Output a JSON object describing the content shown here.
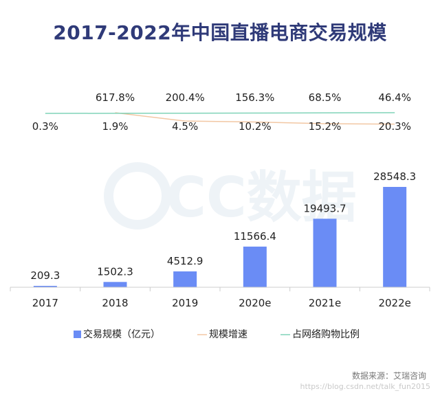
{
  "title": "2017-2022年中国直播电商交易规模",
  "source": "数据来源：艾瑞咨询",
  "watermark": {
    "brand": "CC数据",
    "url": "https://blog.csdn.net/talk_fun2015"
  },
  "colors": {
    "bar": "#6a8cf5",
    "growth": "#f2c7a3",
    "share": "#7fd3b8",
    "title": "#2f3a78"
  },
  "chart_data": {
    "type": "bar",
    "categories": [
      "2017",
      "2018",
      "2019",
      "2020e",
      "2021e",
      "2022e"
    ],
    "series": [
      {
        "name": "交易规模（亿元）",
        "type": "bar",
        "values": [
          209.3,
          1502.3,
          4512.9,
          11566.4,
          19493.7,
          28548.3
        ],
        "labels": [
          "209.3",
          "1502.3",
          "4512.9",
          "11566.4",
          "19493.7",
          "28548.3"
        ]
      },
      {
        "name": "规模增速",
        "type": "line",
        "values": [
          null,
          617.8,
          200.4,
          156.3,
          68.5,
          46.4
        ],
        "labels": [
          "",
          "617.8%",
          "200.4%",
          "156.3%",
          "68.5%",
          "46.4%"
        ]
      },
      {
        "name": "占网络购物比例",
        "type": "line",
        "values": [
          0.3,
          1.9,
          4.5,
          10.2,
          15.2,
          20.3
        ],
        "labels": [
          "0.3%",
          "1.9%",
          "4.5%",
          "10.2%",
          "15.2%",
          "20.3%"
        ]
      }
    ],
    "legend_position": "bottom"
  }
}
